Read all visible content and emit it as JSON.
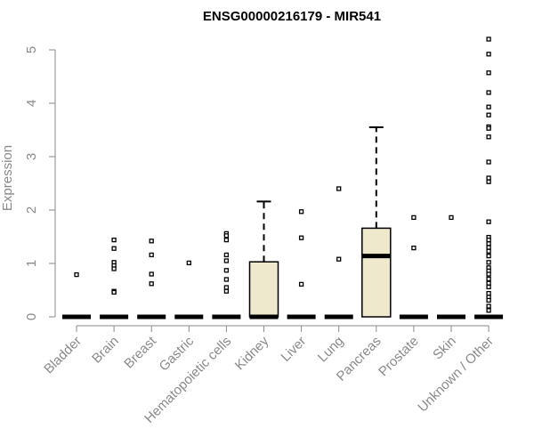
{
  "chart_data": {
    "type": "box",
    "title": "ENSG00000216179 - MIR541",
    "ylabel": "Expression",
    "xlabel": "",
    "ylim": [
      0,
      5.25
    ],
    "yticks": [
      0,
      1,
      2,
      3,
      4,
      5
    ],
    "grid": false,
    "box_color": "#eee8cd",
    "categories": [
      "Bladder",
      "Brain",
      "Breast",
      "Gastric",
      "Hematopoietic cells",
      "Kidney",
      "Liver",
      "Lung",
      "Pancreas",
      "Prostate",
      "Skin",
      "Unknown / Other"
    ],
    "boxes": [
      {
        "min": 0,
        "q1": 0,
        "median": 0,
        "q3": 0,
        "max": 0,
        "outliers": [
          0.79
        ]
      },
      {
        "min": 0,
        "q1": 0,
        "median": 0,
        "q3": 0,
        "max": 0,
        "outliers": [
          1.44,
          1.28,
          1.02,
          0.96,
          0.9,
          0.48,
          0.46
        ]
      },
      {
        "min": 0,
        "q1": 0,
        "median": 0,
        "q3": 0,
        "max": 0,
        "outliers": [
          1.42,
          1.16,
          0.8,
          0.62
        ]
      },
      {
        "min": 0,
        "q1": 0,
        "median": 0,
        "q3": 0,
        "max": 0,
        "outliers": [
          1.01
        ]
      },
      {
        "min": 0,
        "q1": 0,
        "median": 0,
        "q3": 0,
        "max": 0,
        "outliers": [
          1.56,
          1.52,
          1.44,
          1.16,
          1.05,
          0.87,
          0.7,
          0.55,
          0.48
        ]
      },
      {
        "min": 0,
        "q1": 0,
        "median": 0,
        "q3": 1.03,
        "max": 2.16,
        "outliers": []
      },
      {
        "min": 0,
        "q1": 0,
        "median": 0,
        "q3": 0,
        "max": 0,
        "outliers": [
          1.97,
          1.48,
          0.61
        ]
      },
      {
        "min": 0,
        "q1": 0,
        "median": 0,
        "q3": 0,
        "max": 0,
        "outliers": [
          2.4,
          1.08
        ]
      },
      {
        "min": 0,
        "q1": 0,
        "median": 1.14,
        "q3": 1.66,
        "max": 3.55,
        "outliers": []
      },
      {
        "min": 0,
        "q1": 0,
        "median": 0,
        "q3": 0,
        "max": 0,
        "outliers": [
          1.86,
          1.29
        ]
      },
      {
        "min": 0,
        "q1": 0,
        "median": 0,
        "q3": 0,
        "max": 0,
        "outliers": [
          1.86
        ]
      },
      {
        "min": 0,
        "q1": 0,
        "median": 0,
        "q3": 0,
        "max": 0,
        "outliers": [
          5.2,
          4.92,
          4.57,
          4.2,
          3.93,
          3.78,
          3.56,
          3.53,
          3.37,
          2.9,
          2.6,
          2.53,
          1.78,
          1.49,
          1.44,
          1.37,
          1.3,
          1.23,
          1.14,
          1.02,
          0.92,
          0.86,
          0.8,
          0.71,
          0.63,
          0.56,
          0.44,
          0.37,
          0.31,
          0.2,
          0.12
        ]
      }
    ]
  }
}
